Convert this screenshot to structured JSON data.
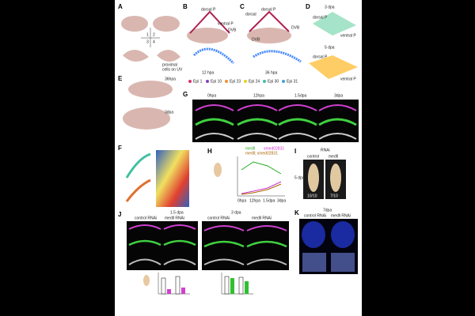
{
  "panels": {
    "A": {
      "letter": "A",
      "labels": [
        "1",
        "2",
        "3",
        "4",
        "proximal",
        "cells on UV"
      ]
    },
    "B": {
      "letter": "B",
      "labels": [
        "dorsal P",
        "ventral P",
        "DVB",
        "12 hpa"
      ]
    },
    "C": {
      "letter": "C",
      "labels": [
        "dorsal P",
        "dorsal",
        "DVB",
        "DVB",
        "36 hpa"
      ]
    },
    "D": {
      "letter": "D",
      "labels": [
        "3 dpa",
        "dorsal P",
        "ventral P",
        "5 dpa",
        "dorsal P",
        "ventral P"
      ]
    },
    "legend": [
      "Epi 1",
      "Epi 10",
      "Epi 23",
      "Epi 24",
      "Epi 30",
      "Epi 31"
    ],
    "E": {
      "letter": "E",
      "labels": [
        "36hpa",
        "3dpa"
      ]
    },
    "G": {
      "letter": "G",
      "columns": [
        "0hpa",
        "12hpa",
        "1.5dpa",
        "3dpa"
      ]
    },
    "F": {
      "letter": "F"
    },
    "H": {
      "letter": "H",
      "legend": [
        "medll",
        "smed02831",
        "medll; smed02831"
      ],
      "x": [
        "0hpa",
        "12hpa",
        "1.5dpa",
        "3dpa"
      ]
    },
    "I": {
      "letter": "I",
      "title": "RNAi",
      "columns": [
        "control",
        "medll"
      ],
      "scores": [
        "10/10",
        "7/10"
      ],
      "time": "5 dpa"
    },
    "J": {
      "letter": "J",
      "groups": [
        "1.5 dpa",
        "3 dpa"
      ],
      "columns": [
        "control RNAi",
        "medll RNAi",
        "control RNAi",
        "medll RNAi"
      ]
    },
    "K": {
      "letter": "K",
      "time": "7dpa",
      "columns": [
        "control RNAi",
        "medll RNAi"
      ]
    }
  }
}
